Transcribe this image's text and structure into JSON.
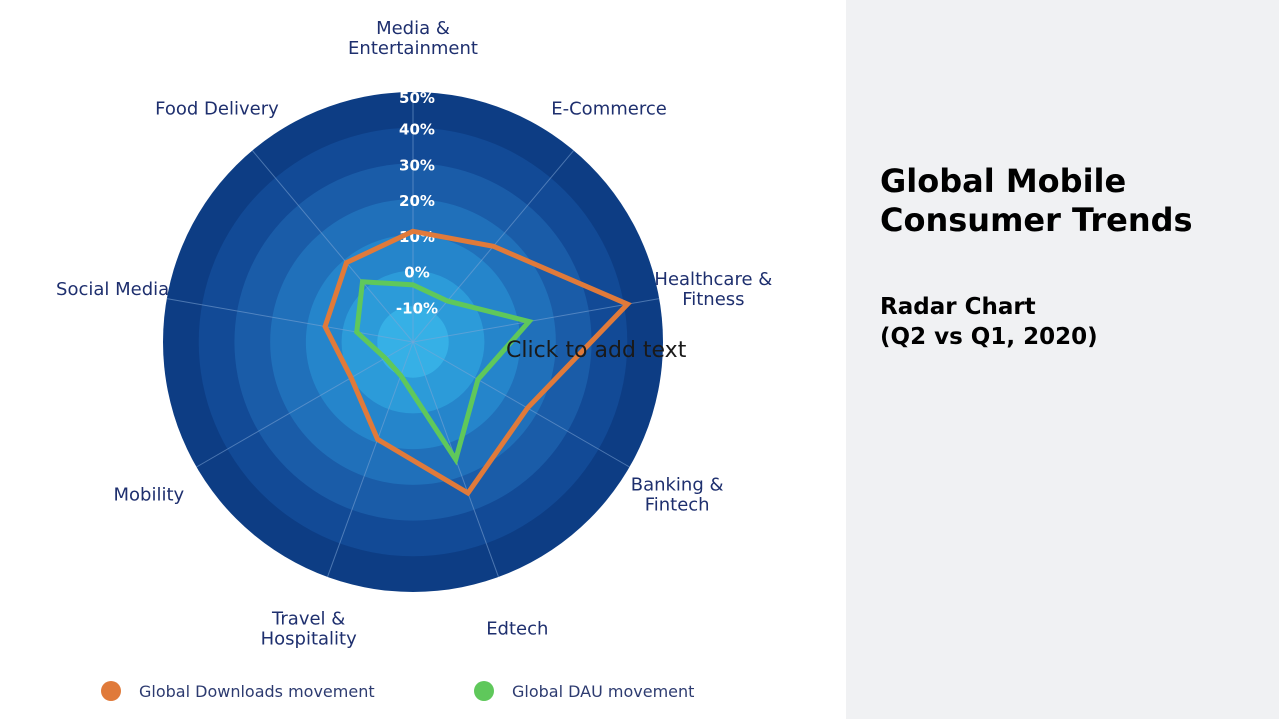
{
  "slide": {
    "title": "Global Mobile\nConsumer Trends",
    "subtitle": "Radar Chart\n(Q2 vs Q1, 2020)",
    "placeholder": "Click to add text"
  },
  "colors": {
    "downloads": "#e07a3a",
    "dau": "#5fc85b",
    "rings": [
      "#0d3d84",
      "#124a96",
      "#1a5ca8",
      "#2070ba",
      "#2585cb",
      "#2c9bd9",
      "#36b0e6"
    ],
    "spokes": "#7fa6d6",
    "labels": "#1e2f6e",
    "right_panel": "#f0f1f3"
  },
  "chart_data": {
    "type": "radar",
    "categories": [
      "Media &\nEntertainment",
      "E-Commerce",
      "Healthcare &\nFitness",
      "Banking &\nFintech",
      "Edtech",
      "Travel &\nHospitality",
      "Mobility",
      "Social Media",
      "Food Delivery"
    ],
    "r_ticks": [
      "50%",
      "40%",
      "30%",
      "20%",
      "10%",
      "0%",
      "-10%"
    ],
    "r_values": [
      50,
      40,
      30,
      20,
      10,
      0,
      -10
    ],
    "rlim": [
      -20,
      50
    ],
    "series": [
      {
        "name": "Global Downloads movement",
        "values": [
          11,
          15,
          41,
          17,
          25,
          9,
          0,
          5,
          9
        ]
      },
      {
        "name": "Global DAU movement",
        "values": [
          -4,
          -5,
          13,
          1,
          15,
          -10,
          -11,
          -4,
          2
        ]
      }
    ],
    "legend_position": "bottom",
    "grid": true
  }
}
